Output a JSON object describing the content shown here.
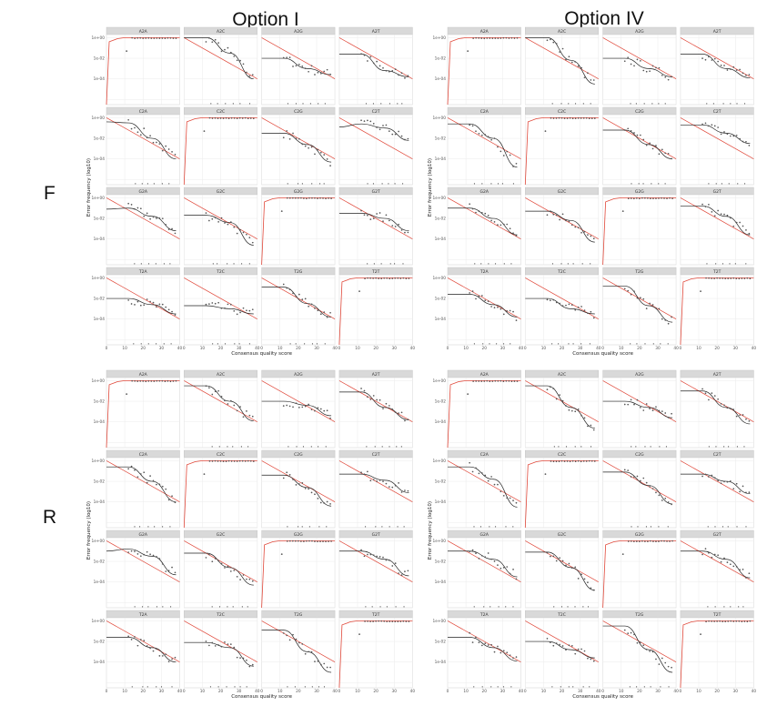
{
  "labels": {
    "option_left": "Option I",
    "option_right": "Option IV",
    "row_top": "F",
    "row_bottom": "R"
  },
  "colors": {
    "strip": "#d9d9d9",
    "grid": "#ebebeb",
    "points": "#555555",
    "fit_line": "#222222",
    "reference_line": "#e0483a"
  },
  "chart_data": {
    "type": "scatter",
    "description": "4 blocks (F/R x Option I/IV), each a 4x4 facet grid of error frequency vs consensus quality score",
    "facets": [
      "A2A",
      "A2C",
      "A2G",
      "A2T",
      "C2A",
      "C2C",
      "C2G",
      "C2T",
      "G2A",
      "G2C",
      "G2G",
      "G2T",
      "T2A",
      "T2C",
      "T2G",
      "T2T"
    ],
    "xlabel": "Consensus quality score",
    "ylabel": "Error frequency (log10)",
    "x_ticks": [
      "0",
      "10",
      "20",
      "30",
      "40"
    ],
    "y_ticks": [
      "1e+00",
      "1e-02",
      "1e-04"
    ],
    "xlim": [
      0,
      40
    ],
    "ylim_log10": [
      -6.5,
      0.3
    ],
    "blocks": [
      {
        "name": "F Option I",
        "fits": {
          "A2C": [
            0,
            0,
            -1.5,
            -4
          ],
          "A2G": [
            -2,
            -2,
            -3,
            -3.6
          ],
          "A2T": [
            -1.6,
            -1.6,
            -3.2,
            -3.8
          ],
          "C2A": [
            -0.4,
            -0.5,
            -2,
            -4
          ],
          "C2G": [
            -1.5,
            -1.5,
            -2.6,
            -4.3
          ],
          "C2T": [
            -0.9,
            -0.6,
            -1,
            -2.2
          ],
          "G2A": [
            -1.1,
            -1,
            -1.8,
            -3.2
          ],
          "G2C": [
            -1.7,
            -1.7,
            -2.4,
            -4.6
          ],
          "G2T": [
            -1.5,
            -1.5,
            -2,
            -3.2
          ],
          "T2A": [
            -2,
            -2,
            -2.6,
            -3.5
          ],
          "T2C": [
            -2.7,
            -2.7,
            -3,
            -3.5
          ],
          "T2G": [
            -0.9,
            -0.9,
            -2.5,
            -3.8
          ]
        }
      },
      {
        "name": "F Option IV",
        "fits": {
          "A2C": [
            0,
            0,
            -2.2,
            -4.5
          ],
          "A2G": [
            -2,
            -2,
            -3,
            -3.8
          ],
          "A2T": [
            -1.6,
            -1.6,
            -3,
            -3.9
          ],
          "C2A": [
            -0.6,
            -0.6,
            -2,
            -4.8
          ],
          "C2G": [
            -1.2,
            -1.2,
            -2.6,
            -4
          ],
          "C2T": [
            -0.7,
            -0.7,
            -1.5,
            -2.5
          ],
          "G2A": [
            -1,
            -1,
            -2,
            -3.6
          ],
          "G2C": [
            -1.3,
            -1.3,
            -2.2,
            -4.3
          ],
          "G2T": [
            -0.8,
            -0.8,
            -1.8,
            -3.6
          ],
          "T2A": [
            -1.6,
            -1.6,
            -2.6,
            -3.8
          ],
          "T2C": [
            -2,
            -2,
            -3,
            -3.5
          ],
          "T2G": [
            -0.8,
            -0.8,
            -2.7,
            -4.3
          ]
        }
      },
      {
        "name": "R Option I",
        "fits": {
          "A2C": [
            -0.5,
            -0.5,
            -2,
            -3.9
          ],
          "A2G": [
            -2,
            -2,
            -2.4,
            -3.4
          ],
          "A2T": [
            -1.1,
            -1.1,
            -2.6,
            -3.8
          ],
          "C2A": [
            -0.6,
            -0.6,
            -2,
            -4
          ],
          "C2G": [
            -1.4,
            -1.4,
            -2.6,
            -4.4
          ],
          "C2T": [
            -1.3,
            -1.3,
            -1.9,
            -3.1
          ],
          "G2A": [
            -1,
            -0.8,
            -1.5,
            -3.3
          ],
          "G2C": [
            -1.2,
            -1.2,
            -2.6,
            -4.3
          ],
          "G2T": [
            -1,
            -1,
            -1.8,
            -3.4
          ],
          "T2A": [
            -1.6,
            -1.6,
            -2.6,
            -4
          ],
          "T2C": [
            -2.1,
            -2.1,
            -2.6,
            -4.4
          ],
          "T2G": [
            -0.9,
            -0.9,
            -3,
            -5
          ]
        }
      },
      {
        "name": "R Option IV",
        "fits": {
          "A2C": [
            -0.5,
            -0.5,
            -2.6,
            -4.6
          ],
          "A2G": [
            -2,
            -2,
            -2.6,
            -3.6
          ],
          "A2T": [
            -1,
            -1,
            -2.6,
            -4.2
          ],
          "C2A": [
            -0.6,
            -0.6,
            -1.8,
            -4.5
          ],
          "C2G": [
            -1.1,
            -1.1,
            -2.4,
            -4.2
          ],
          "C2T": [
            -1.3,
            -1.3,
            -2,
            -3.2
          ],
          "G2A": [
            -1,
            -1,
            -1.8,
            -3.5
          ],
          "G2C": [
            -1.1,
            -1.1,
            -2.6,
            -4.8
          ],
          "G2T": [
            -1,
            -1,
            -1.8,
            -3.6
          ],
          "T2A": [
            -1.6,
            -1.6,
            -2.6,
            -3.9
          ],
          "T2C": [
            -2,
            -2,
            -2.8,
            -3.6
          ],
          "T2G": [
            -0.5,
            -0.5,
            -2.8,
            -5
          ]
        }
      }
    ]
  }
}
